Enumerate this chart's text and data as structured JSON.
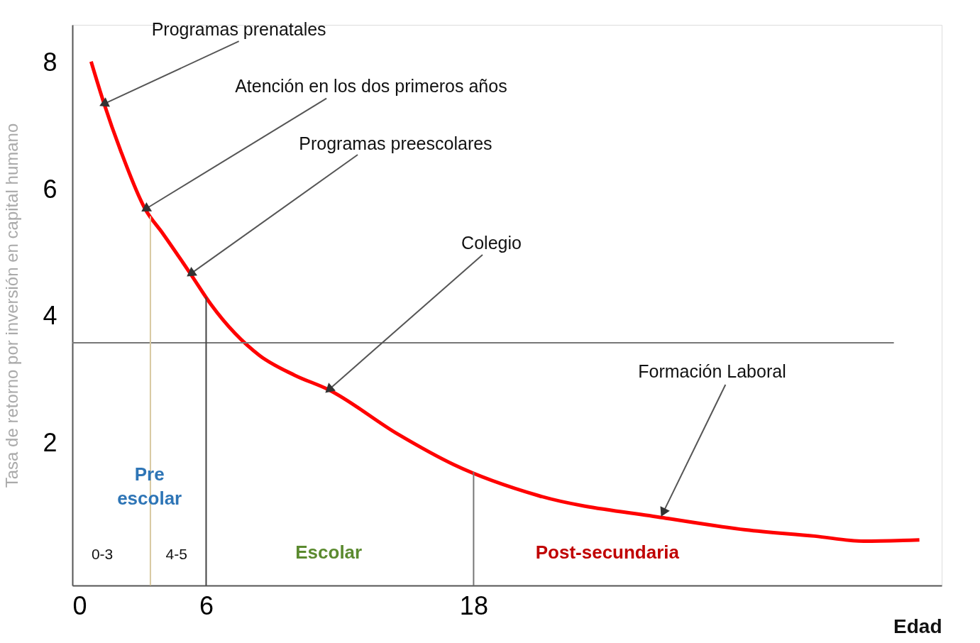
{
  "chart_data": {
    "type": "line",
    "xlabel": "Edad",
    "ylabel": "Tasa de retorno por inversión en capital humano",
    "x": [
      0.84,
      1.4,
      2.18,
      3.27,
      4.05,
      5.3,
      6.23,
      8.4,
      9.97,
      11.5,
      14.6,
      17.1,
      20.9,
      26.5,
      30.2,
      33.3,
      35.5,
      38.0
    ],
    "series": [
      {
        "color": "#ff0000",
        "values": [
          8.02,
          7.38,
          6.6,
          5.69,
          5.31,
          4.67,
          4.18,
          3.38,
          3.07,
          2.84,
          2.14,
          1.66,
          1.17,
          0.82,
          0.63,
          0.53,
          0.45,
          0.47
        ]
      }
    ],
    "xlim": [
      0,
      39
    ],
    "xticks": [
      0,
      6,
      18
    ],
    "ylim": [
      -0.25,
      8.6
    ],
    "yticks": [
      2,
      4,
      6,
      8
    ],
    "grid": false,
    "marker": "none",
    "line_style": "solid",
    "ref_lines": [
      {
        "axis": "y",
        "value": 3.58,
        "color": "#777777"
      },
      {
        "axis": "x",
        "value": 3.5,
        "color": "#d8c9a0"
      },
      {
        "axis": "x",
        "value": 6,
        "color": "#444444"
      },
      {
        "axis": "x",
        "value": 18,
        "color": "#777777"
      }
    ],
    "annotations": [
      {
        "text": "Programas prenatales",
        "x": 1.4,
        "y": 7.35
      },
      {
        "text": "Atención en los dos primeros años",
        "x": 3.27,
        "y": 5.69
      },
      {
        "text": "Programas preescolares",
        "x": 5.3,
        "y": 4.67
      },
      {
        "text": "Colegio",
        "x": 11.5,
        "y": 2.84
      },
      {
        "text": "Formación Laboral",
        "x": 26.5,
        "y": 0.9
      },
      "Pre\nescolar",
      "0-3",
      "4-5",
      "Escolar",
      "Post-secundaria"
    ]
  }
}
